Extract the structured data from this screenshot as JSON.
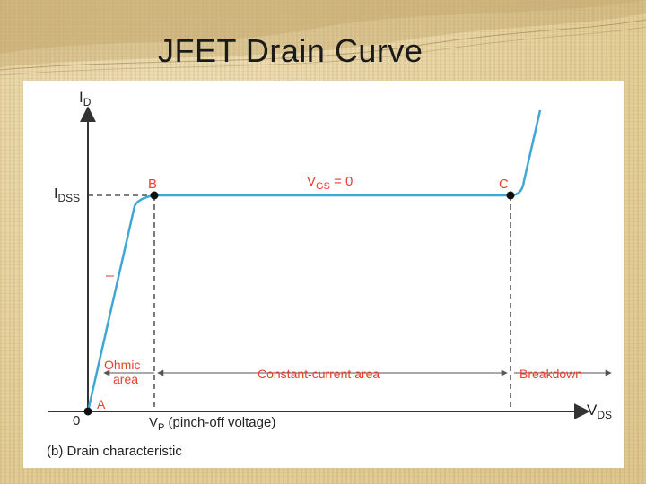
{
  "slide": {
    "title": "JFET Drain Curve"
  },
  "diagram": {
    "caption": "(b) Drain characteristic",
    "y_axis": {
      "main": "I",
      "sub": "D"
    },
    "x_axis": {
      "main": "V",
      "sub": "DS"
    },
    "idss": {
      "main": "I",
      "sub": "DSS"
    },
    "origin": "0",
    "point_a": "A",
    "point_b": "B",
    "point_c": "C",
    "vgs_label": {
      "main": "V",
      "sub": "GS",
      "rest": " = 0"
    },
    "vp_label": {
      "main": "V",
      "sub": "P",
      "rest": " (pinch-off voltage)"
    },
    "ohmic_line1": "Ohmic",
    "ohmic_line2": "area",
    "constant_current": "Constant-current area",
    "breakdown": "Breakdown",
    "curve_mark": "–",
    "colors": {
      "curve": "#3fa7d6",
      "label": "#e8412c",
      "axis": "#333333",
      "text": "#222222"
    }
  }
}
